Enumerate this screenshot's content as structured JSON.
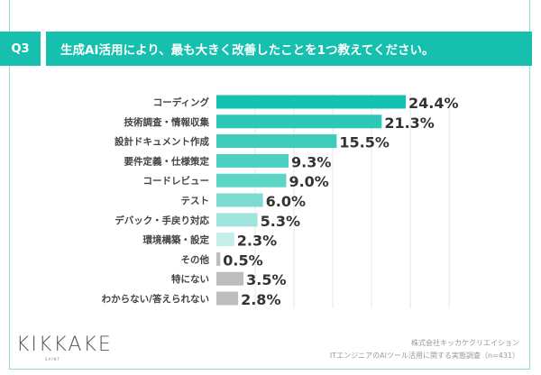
{
  "header": {
    "badge": "Q3",
    "question": "生成AI活用により、最も大きく改善したことを1つ教えてください。"
  },
  "chart_data": {
    "type": "bar",
    "orientation": "horizontal",
    "categories": [
      "コーディング",
      "技術調査・情報収集",
      "設計ドキュメント作成",
      "要件定義・仕様策定",
      "コードレビュー",
      "テスト",
      "デバック・手戻り対応",
      "環境構築・設定",
      "その他",
      "特にない",
      "わからない/答えられない"
    ],
    "values": [
      24.4,
      21.3,
      15.5,
      9.3,
      9.0,
      6.0,
      5.3,
      2.3,
      0.5,
      3.5,
      2.8
    ],
    "data_labels": [
      "24.4%",
      "21.3%",
      "15.5%",
      "9.3%",
      "9.0%",
      "6.0%",
      "5.3%",
      "2.3%",
      "0.5%",
      "3.5%",
      "2.8%"
    ],
    "unit": "%",
    "xlim": [
      0,
      30
    ],
    "grid": true,
    "colors": [
      "#13c2b0",
      "#2cc8b7",
      "#3dcbbb",
      "#4dd0c1",
      "#5dd5c7",
      "#7ddcd1",
      "#9fe5dd",
      "#c3eee9",
      "#bdbdbd",
      "#bdbdbd",
      "#bdbdbd"
    ]
  },
  "footer": {
    "logo": "KIKKAKE",
    "logo_sub": "SAINT",
    "company": "株式会社キッカケクリエイション",
    "survey": "ITエンジニアのAIツール活用に関する実態調査（n=431）"
  }
}
